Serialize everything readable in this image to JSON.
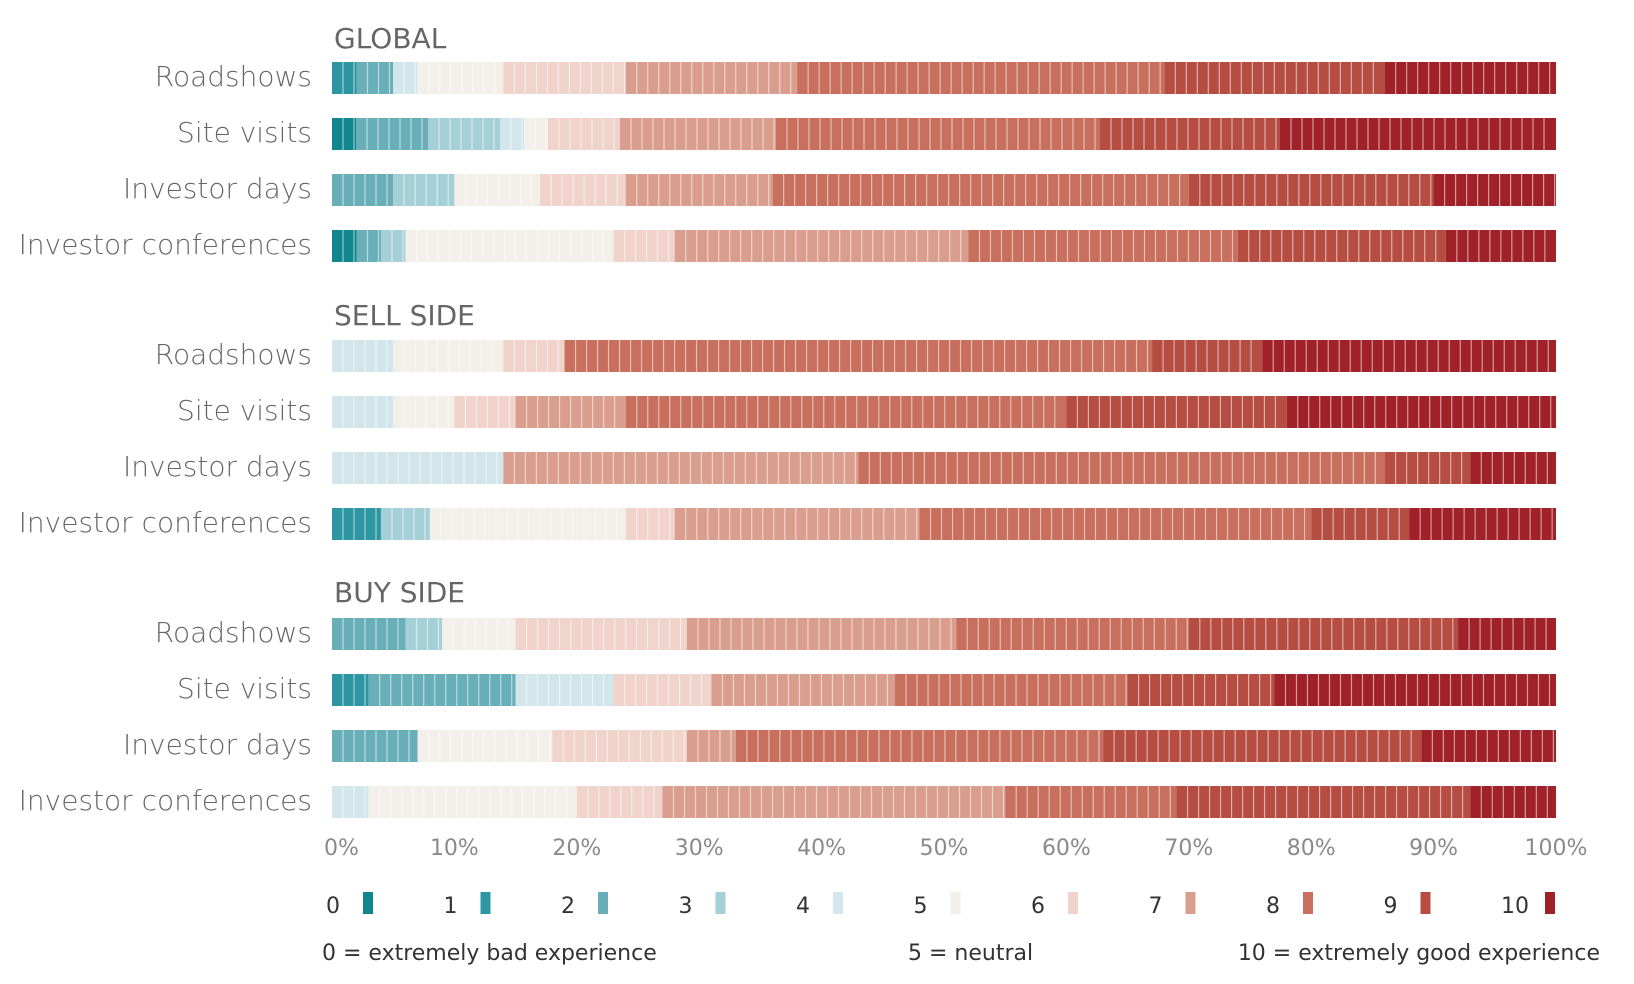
{
  "chart_data": {
    "type": "bar",
    "orientation": "horizontal",
    "stacked": "100%",
    "xlim": [
      0,
      100
    ],
    "x_ticks": [
      "0%",
      "10%",
      "20%",
      "30%",
      "40%",
      "50%",
      "60%",
      "70%",
      "80%",
      "90%",
      "100%"
    ],
    "score_levels": [
      "0",
      "1",
      "2",
      "3",
      "4",
      "5",
      "6",
      "7",
      "8",
      "9",
      "10"
    ],
    "colors": [
      "#11868f",
      "#2c97a3",
      "#68afba",
      "#a6d0d8",
      "#d2e6ec",
      "#f3efe9",
      "#f0d3cb",
      "#d99e8e",
      "#c86f5e",
      "#b54d43",
      "#a12129"
    ],
    "scale_notes": {
      "low": "0 = extremely bad experience",
      "mid": "5 = neutral",
      "high": "10 = extremely good experience"
    },
    "groups": [
      {
        "name": "GLOBAL",
        "rows": [
          {
            "label": "Roadshows",
            "values": [
              0,
              2,
              3,
              0,
              2,
              7,
              10,
              14,
              30,
              18,
              14
            ]
          },
          {
            "label": "Site visits",
            "values": [
              2,
              0,
              6,
              6,
              2,
              2,
              6,
              13,
              27,
              15,
              23
            ]
          },
          {
            "label": "Investor days",
            "values": [
              0,
              0,
              5,
              5,
              0,
              7,
              7,
              12,
              34,
              20,
              10
            ]
          },
          {
            "label": "Investor conferences",
            "values": [
              2,
              0,
              2,
              2,
              0,
              17,
              5,
              24,
              22,
              17,
              9
            ]
          }
        ]
      },
      {
        "name": "SELL SIDE",
        "rows": [
          {
            "label": "Roadshows",
            "values": [
              0,
              0,
              0,
              0,
              5,
              9,
              5,
              0,
              48,
              9,
              24
            ]
          },
          {
            "label": "Site visits",
            "values": [
              0,
              0,
              0,
              0,
              5,
              5,
              5,
              9,
              36,
              18,
              22
            ]
          },
          {
            "label": "Investor days",
            "values": [
              0,
              0,
              0,
              0,
              14,
              0,
              0,
              29,
              43,
              7,
              7
            ]
          },
          {
            "label": "Investor conferences",
            "values": [
              0,
              4,
              0,
              4,
              0,
              16,
              4,
              20,
              32,
              8,
              12
            ]
          }
        ]
      },
      {
        "name": "BUY SIDE",
        "rows": [
          {
            "label": "Roadshows",
            "values": [
              0,
              0,
              6,
              3,
              0,
              6,
              14,
              22,
              19,
              22,
              8
            ]
          },
          {
            "label": "Site visits",
            "values": [
              0,
              3,
              12,
              0,
              8,
              0,
              8,
              15,
              19,
              12,
              23
            ]
          },
          {
            "label": "Investor days",
            "values": [
              0,
              0,
              7,
              0,
              0,
              11,
              11,
              4,
              30,
              26,
              11
            ]
          },
          {
            "label": "Investor conferences",
            "values": [
              0,
              0,
              0,
              0,
              3,
              17,
              7,
              28,
              14,
              24,
              7
            ]
          }
        ]
      }
    ]
  }
}
